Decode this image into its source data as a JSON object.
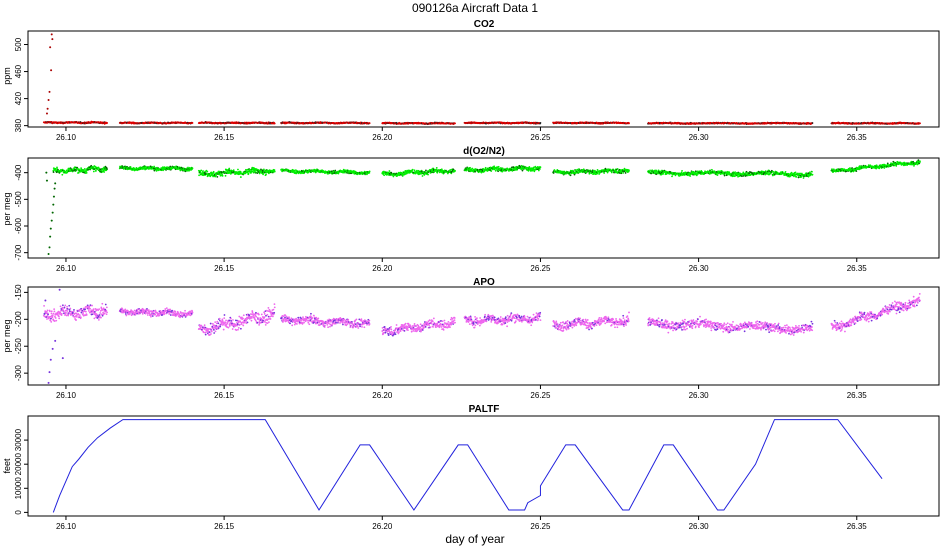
{
  "figure": {
    "title": "090126a   Aircraft Data 1",
    "xlabel": "day of year"
  },
  "chart_data": [
    {
      "id": "co2",
      "type": "scatter",
      "title": "CO2",
      "ylabel": "ppm",
      "xlim": [
        26.088,
        26.376
      ],
      "ylim": [
        378,
        520
      ],
      "xticks": [
        "26.10",
        "26.15",
        "26.20",
        "26.25",
        "26.30",
        "26.35"
      ],
      "yticks": [
        380,
        420,
        460,
        500
      ],
      "color": "#dd0000",
      "accent_color": "#222222",
      "segments": [
        {
          "x0": 26.093,
          "x1": 26.113,
          "y": 384.5,
          "noise": 1.5
        },
        {
          "x0": 26.117,
          "x1": 26.14,
          "y": 384,
          "noise": 1.2
        },
        {
          "x0": 26.142,
          "x1": 26.166,
          "y": 384,
          "noise": 1.2
        },
        {
          "x0": 26.168,
          "x1": 26.196,
          "y": 384,
          "noise": 1.2
        },
        {
          "x0": 26.2,
          "x1": 26.223,
          "y": 383.5,
          "noise": 1.2
        },
        {
          "x0": 26.226,
          "x1": 26.25,
          "y": 384,
          "noise": 1.2
        },
        {
          "x0": 26.254,
          "x1": 26.278,
          "y": 384,
          "noise": 1.2
        },
        {
          "x0": 26.284,
          "x1": 26.336,
          "y": 383.5,
          "noise": 1.2
        },
        {
          "x0": 26.342,
          "x1": 26.37,
          "y": 383.5,
          "noise": 1.2
        }
      ],
      "spikes": [
        {
          "x": 26.0955,
          "y": 515
        },
        {
          "x": 26.0957,
          "y": 508
        },
        {
          "x": 26.095,
          "y": 496
        },
        {
          "x": 26.0953,
          "y": 462
        },
        {
          "x": 26.0948,
          "y": 430
        },
        {
          "x": 26.0945,
          "y": 418
        },
        {
          "x": 26.0942,
          "y": 405
        },
        {
          "x": 26.094,
          "y": 398
        }
      ]
    },
    {
      "id": "do2n2",
      "type": "scatter",
      "title": "d(O2/N2)",
      "ylabel": "per meg",
      "xlim": [
        26.088,
        26.376
      ],
      "ylim": [
        -720,
        -345
      ],
      "xticks": [
        "26.10",
        "26.15",
        "26.20",
        "26.25",
        "26.30",
        "26.35"
      ],
      "yticks": [
        -700,
        -600,
        -500,
        -400
      ],
      "color": "#00ee00",
      "accent_color": "#006600",
      "segments": [
        {
          "x0": 26.096,
          "x1": 26.113,
          "y0": -395,
          "y1": -385,
          "noise": 14
        },
        {
          "x0": 26.117,
          "x1": 26.14,
          "y0": -383,
          "y1": -385,
          "noise": 9
        },
        {
          "x0": 26.142,
          "x1": 26.166,
          "y0": -405,
          "y1": -393,
          "noise": 15
        },
        {
          "x0": 26.168,
          "x1": 26.196,
          "y0": -393,
          "y1": -400,
          "noise": 9
        },
        {
          "x0": 26.2,
          "x1": 26.223,
          "y0": -405,
          "y1": -392,
          "noise": 12
        },
        {
          "x0": 26.226,
          "x1": 26.25,
          "y0": -391,
          "y1": -383,
          "noise": 11
        },
        {
          "x0": 26.254,
          "x1": 26.278,
          "y0": -400,
          "y1": -392,
          "noise": 11
        },
        {
          "x0": 26.284,
          "x1": 26.336,
          "y0": -400,
          "y1": -405,
          "noise": 12
        },
        {
          "x0": 26.342,
          "x1": 26.37,
          "y0": -395,
          "y1": -360,
          "noise": 10
        }
      ],
      "spikes": [
        {
          "x": 26.0945,
          "y": -705
        },
        {
          "x": 26.0948,
          "y": -680
        },
        {
          "x": 26.095,
          "y": -640
        },
        {
          "x": 26.0952,
          "y": -610
        },
        {
          "x": 26.0955,
          "y": -580
        },
        {
          "x": 26.0958,
          "y": -550
        },
        {
          "x": 26.096,
          "y": -520
        },
        {
          "x": 26.0962,
          "y": -490
        },
        {
          "x": 26.0964,
          "y": -460
        },
        {
          "x": 26.094,
          "y": -430
        },
        {
          "x": 26.0938,
          "y": -400
        },
        {
          "x": 26.0966,
          "y": -440
        }
      ]
    },
    {
      "id": "apo",
      "type": "scatter",
      "title": "APO",
      "ylabel": "per meg",
      "xlim": [
        26.088,
        26.376
      ],
      "ylim": [
        -322,
        -140
      ],
      "xticks": [
        "26.10",
        "26.15",
        "26.20",
        "26.25",
        "26.30",
        "26.35"
      ],
      "yticks": [
        -300,
        -250,
        -200,
        -150
      ],
      "color": "#ee66ee",
      "accent_color": "#7733dd",
      "segments": [
        {
          "x0": 26.093,
          "x1": 26.113,
          "y0": -190,
          "y1": -185,
          "noise": 16
        },
        {
          "x0": 26.117,
          "x1": 26.14,
          "y0": -185,
          "y1": -190,
          "noise": 8
        },
        {
          "x0": 26.142,
          "x1": 26.166,
          "y0": -220,
          "y1": -190,
          "noise": 16
        },
        {
          "x0": 26.168,
          "x1": 26.196,
          "y0": -200,
          "y1": -208,
          "noise": 10
        },
        {
          "x0": 26.2,
          "x1": 26.223,
          "y0": -222,
          "y1": -205,
          "noise": 12
        },
        {
          "x0": 26.226,
          "x1": 26.25,
          "y0": -202,
          "y1": -198,
          "noise": 12
        },
        {
          "x0": 26.254,
          "x1": 26.278,
          "y0": -210,
          "y1": -203,
          "noise": 12
        },
        {
          "x0": 26.284,
          "x1": 26.336,
          "y0": -207,
          "y1": -218,
          "noise": 12
        },
        {
          "x0": 26.342,
          "x1": 26.37,
          "y0": -215,
          "y1": -165,
          "noise": 12
        }
      ],
      "spikes": [
        {
          "x": 26.0945,
          "y": -318
        },
        {
          "x": 26.0948,
          "y": -298
        },
        {
          "x": 26.0952,
          "y": -275
        },
        {
          "x": 26.0958,
          "y": -255
        },
        {
          "x": 26.0966,
          "y": -240
        },
        {
          "x": 26.099,
          "y": -272
        },
        {
          "x": 26.0935,
          "y": -165
        },
        {
          "x": 26.098,
          "y": -145
        }
      ]
    },
    {
      "id": "paltf",
      "type": "line",
      "title": "PALTF",
      "ylabel": "feet",
      "xlim": [
        26.088,
        26.376
      ],
      "ylim": [
        -1500,
        40000
      ],
      "xticks": [
        "26.10",
        "26.15",
        "26.20",
        "26.25",
        "26.30",
        "26.35"
      ],
      "yticks": [
        0,
        10000,
        20000,
        30000
      ],
      "color": "#2222dd",
      "x": [
        26.096,
        26.098,
        26.1,
        26.102,
        26.104,
        26.107,
        26.11,
        26.114,
        26.118,
        26.163,
        26.18,
        26.193,
        26.196,
        26.21,
        26.224,
        26.227,
        26.24,
        26.245,
        26.246,
        26.25,
        26.25,
        26.258,
        26.261,
        26.276,
        26.278,
        26.289,
        26.292,
        26.306,
        26.308,
        26.318,
        26.324,
        26.344,
        26.358
      ],
      "y": [
        0,
        7000,
        13000,
        19000,
        22000,
        27000,
        31000,
        35000,
        38500,
        38500,
        1000,
        28000,
        28000,
        1000,
        28000,
        28000,
        1000,
        1000,
        4000,
        7000,
        11000,
        28000,
        28000,
        1000,
        1000,
        28000,
        28000,
        1000,
        1000,
        20000,
        38500,
        38500,
        14000
      ]
    }
  ]
}
